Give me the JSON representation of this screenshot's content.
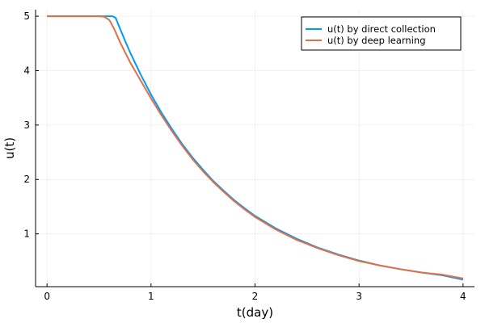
{
  "chart_data": {
    "type": "line",
    "title": "",
    "xlabel": "t(day)",
    "ylabel": "u(t)",
    "xlim": [
      -0.11,
      4.11
    ],
    "ylim": [
      0.03,
      5.12
    ],
    "xticks": [
      0,
      1,
      2,
      3,
      4
    ],
    "yticks": [
      1,
      2,
      3,
      4,
      5
    ],
    "grid": true,
    "legend_position": "top-right",
    "series": [
      {
        "name": "u(t) by direct collection",
        "color": "#009af9",
        "x": [
          0,
          0.1,
          0.2,
          0.3,
          0.4,
          0.5,
          0.6,
          0.63,
          0.66,
          0.7,
          0.75,
          0.8,
          0.9,
          1.0,
          1.1,
          1.2,
          1.3,
          1.4,
          1.5,
          1.6,
          1.7,
          1.8,
          1.9,
          2.0,
          2.2,
          2.4,
          2.6,
          2.8,
          3.0,
          3.2,
          3.4,
          3.6,
          3.8,
          4.0
        ],
        "y": [
          5.0,
          5.0,
          5.0,
          5.0,
          5.0,
          5.0,
          5.0,
          5.0,
          4.97,
          4.78,
          4.55,
          4.33,
          3.93,
          3.56,
          3.23,
          2.93,
          2.65,
          2.4,
          2.18,
          1.97,
          1.79,
          1.62,
          1.47,
          1.33,
          1.1,
          0.91,
          0.75,
          0.62,
          0.51,
          0.42,
          0.35,
          0.29,
          0.24,
          0.16
        ]
      },
      {
        "name": "u(t) by deep learning",
        "color": "#e26f46",
        "x": [
          0,
          0.1,
          0.2,
          0.3,
          0.4,
          0.5,
          0.55,
          0.6,
          0.65,
          0.7,
          0.75,
          0.8,
          0.9,
          1.0,
          1.1,
          1.2,
          1.3,
          1.4,
          1.5,
          1.6,
          1.7,
          1.8,
          1.9,
          2.0,
          2.2,
          2.4,
          2.6,
          2.8,
          3.0,
          3.2,
          3.4,
          3.6,
          3.8,
          4.0
        ],
        "y": [
          5.0,
          5.0,
          5.0,
          5.0,
          5.0,
          5.0,
          4.99,
          4.93,
          4.75,
          4.53,
          4.34,
          4.15,
          3.82,
          3.49,
          3.18,
          2.89,
          2.62,
          2.37,
          2.15,
          1.95,
          1.77,
          1.6,
          1.45,
          1.31,
          1.08,
          0.89,
          0.74,
          0.61,
          0.5,
          0.42,
          0.35,
          0.29,
          0.25,
          0.18
        ]
      }
    ]
  }
}
